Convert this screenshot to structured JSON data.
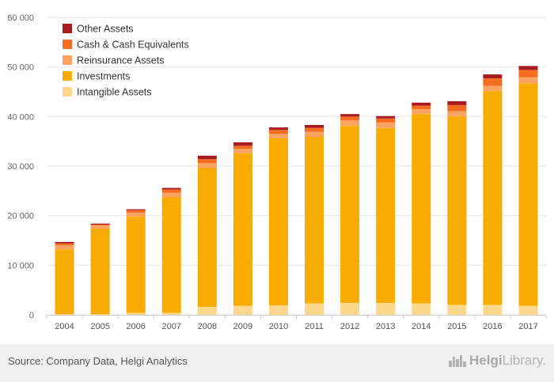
{
  "chart_data": {
    "type": "bar",
    "stacked": true,
    "categories": [
      "2004",
      "2005",
      "2006",
      "2007",
      "2008",
      "2009",
      "2010",
      "2011",
      "2012",
      "2013",
      "2014",
      "2015",
      "2016",
      "2017"
    ],
    "series": [
      {
        "name": "Intangible Assets",
        "color": "#fdd78c",
        "values": [
          100,
          100,
          400,
          400,
          1600,
          1800,
          1900,
          2300,
          2400,
          2400,
          2300,
          2000,
          2000,
          1800
        ]
      },
      {
        "name": "Investments",
        "color": "#f8ab00",
        "values": [
          13100,
          17300,
          19400,
          23300,
          28000,
          30800,
          33700,
          33600,
          35700,
          35300,
          38200,
          38000,
          43200,
          44900
        ]
      },
      {
        "name": "Reinsurance Assets",
        "color": "#fba461",
        "values": [
          800,
          600,
          800,
          900,
          1000,
          900,
          900,
          1000,
          1100,
          1100,
          1000,
          1100,
          1000,
          1200
        ]
      },
      {
        "name": "Cash & Cash Equivalents",
        "color": "#f46d21",
        "values": [
          400,
          200,
          500,
          700,
          800,
          600,
          800,
          800,
          800,
          800,
          700,
          1200,
          1500,
          1500
        ]
      },
      {
        "name": "Other Assets",
        "color": "#a81c21",
        "values": [
          300,
          200,
          200,
          300,
          700,
          700,
          500,
          600,
          500,
          500,
          600,
          800,
          800,
          800
        ]
      }
    ],
    "legend_order": [
      "Other Assets",
      "Cash & Cash Equivalents",
      "Reinsurance Assets",
      "Investments",
      "Intangible Assets"
    ],
    "legend_position": "top-left",
    "yticks": [
      0,
      10000,
      20000,
      30000,
      40000,
      50000,
      60000
    ],
    "ytick_labels": [
      "0",
      "10 000",
      "20 000",
      "30 000",
      "40 000",
      "50 000",
      "60 000"
    ],
    "ylim": [
      0,
      60000
    ],
    "grid": true
  },
  "footer": {
    "source": "Source: Company Data, Helgi Analytics",
    "brand_name_bold": "Helgi",
    "brand_name_rest": "Library."
  }
}
